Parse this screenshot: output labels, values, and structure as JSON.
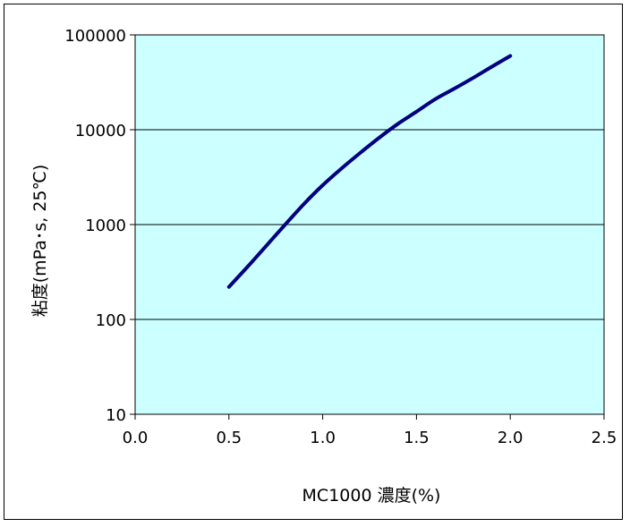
{
  "chart_data": {
    "type": "line",
    "title": "",
    "xlabel": "MC1000 濃度(%)",
    "ylabel": "粘度(mPa･s, 25℃)",
    "xlim": [
      0.0,
      2.5
    ],
    "ylim": [
      10,
      100000
    ],
    "y_scale": "log",
    "x_ticks": [
      "0.0",
      "0.5",
      "1.0",
      "1.5",
      "2.0",
      "2.5"
    ],
    "y_ticks": [
      "10",
      "100",
      "1000",
      "10000",
      "100000"
    ],
    "grid": "horizontal",
    "plot_background": "#ccffff",
    "series": [
      {
        "color": "#000080",
        "x": [
          0.5,
          0.6,
          0.7,
          0.8,
          0.9,
          1.0,
          1.1,
          1.2,
          1.3,
          1.4,
          1.5,
          1.6,
          1.7,
          1.8,
          1.9,
          2.0
        ],
        "y": [
          220,
          360,
          600,
          1000,
          1650,
          2600,
          3900,
          5700,
          8200,
          11500,
          15500,
          21000,
          27000,
          35000,
          46000,
          60000
        ]
      }
    ]
  }
}
